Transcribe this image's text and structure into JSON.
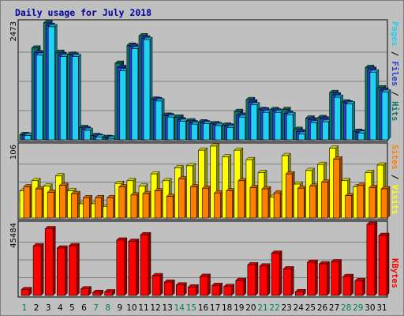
{
  "chart_data": [
    {
      "type": "bar",
      "title": "Daily usage for July 2018",
      "categories": [
        "1",
        "2",
        "3",
        "4",
        "5",
        "6",
        "7",
        "8",
        "9",
        "10",
        "11",
        "12",
        "13",
        "14",
        "15",
        "16",
        "17",
        "18",
        "19",
        "20",
        "21",
        "22",
        "23",
        "24",
        "25",
        "26",
        "27",
        "28",
        "29",
        "30",
        "31"
      ],
      "weekend_days": [
        "1",
        "7",
        "8",
        "14",
        "15",
        "21",
        "22",
        "28",
        "29"
      ],
      "scale_max_label": "2473",
      "ylim": [
        0,
        2473
      ],
      "grid": true,
      "series": [
        {
          "name": "Hits",
          "color": "#0b7868",
          "values": [
            110,
            1940,
            2473,
            1850,
            1810,
            260,
            90,
            50,
            1620,
            2000,
            2200,
            860,
            520,
            480,
            400,
            380,
            340,
            310,
            600,
            850,
            640,
            640,
            640,
            220,
            460,
            470,
            1000,
            800,
            180,
            1530,
            1100
          ]
        },
        {
          "name": "Files",
          "color": "#2a3ed2",
          "values": [
            100,
            1840,
            2420,
            1800,
            1790,
            230,
            75,
            40,
            1530,
            1980,
            2150,
            850,
            510,
            420,
            360,
            360,
            320,
            290,
            520,
            800,
            630,
            610,
            560,
            170,
            420,
            440,
            950,
            780,
            160,
            1490,
            1050
          ]
        },
        {
          "name": "Pages",
          "color": "#1fd1f2",
          "values": [
            90,
            1790,
            2390,
            1760,
            1760,
            200,
            55,
            30,
            1460,
            1930,
            2120,
            820,
            480,
            390,
            330,
            340,
            300,
            260,
            480,
            740,
            580,
            580,
            530,
            120,
            360,
            380,
            900,
            760,
            140,
            1430,
            1010
          ]
        }
      ]
    },
    {
      "type": "bar",
      "categories": [
        "1",
        "2",
        "3",
        "4",
        "5",
        "6",
        "7",
        "8",
        "9",
        "10",
        "11",
        "12",
        "13",
        "14",
        "15",
        "16",
        "17",
        "18",
        "19",
        "20",
        "21",
        "22",
        "23",
        "24",
        "25",
        "26",
        "27",
        "28",
        "29",
        "30",
        "31"
      ],
      "scale_max_label": "106",
      "ylim": [
        0,
        106
      ],
      "grid": true,
      "series": [
        {
          "name": "Visits",
          "color": "#ffff00",
          "values": [
            40,
            55,
            47,
            62,
            40,
            21,
            21,
            17,
            51,
            55,
            47,
            65,
            55,
            74,
            77,
            100,
            106,
            90,
            100,
            86,
            67,
            31,
            92,
            50,
            70,
            79,
            103,
            55,
            46,
            67,
            78
          ]
        },
        {
          "name": "Sites",
          "color": "#ff8000",
          "values": [
            46,
            43,
            38,
            48,
            36,
            30,
            30,
            30,
            46,
            34,
            36,
            40,
            32,
            58,
            46,
            44,
            37,
            40,
            55,
            45,
            43,
            37,
            65,
            44,
            47,
            53,
            87,
            33,
            48,
            45,
            43
          ]
        }
      ]
    },
    {
      "type": "bar",
      "categories": [
        "1",
        "2",
        "3",
        "4",
        "5",
        "6",
        "7",
        "8",
        "9",
        "10",
        "11",
        "12",
        "13",
        "14",
        "15",
        "16",
        "17",
        "18",
        "19",
        "20",
        "21",
        "22",
        "23",
        "24",
        "25",
        "26",
        "27",
        "28",
        "29",
        "30",
        "31"
      ],
      "scale_max_label": "45484",
      "ylim": [
        0,
        45484
      ],
      "grid": true,
      "series": [
        {
          "name": "KBytes",
          "color": "#ff0000",
          "values": [
            3700,
            31700,
            42700,
            30300,
            31800,
            4200,
            1900,
            2300,
            35400,
            34600,
            38800,
            12600,
            8500,
            6700,
            5400,
            12200,
            6400,
            5700,
            9600,
            19600,
            18800,
            27000,
            17000,
            2400,
            21200,
            20200,
            21500,
            12100,
            9400,
            45484,
            38400
          ]
        }
      ]
    }
  ]
}
